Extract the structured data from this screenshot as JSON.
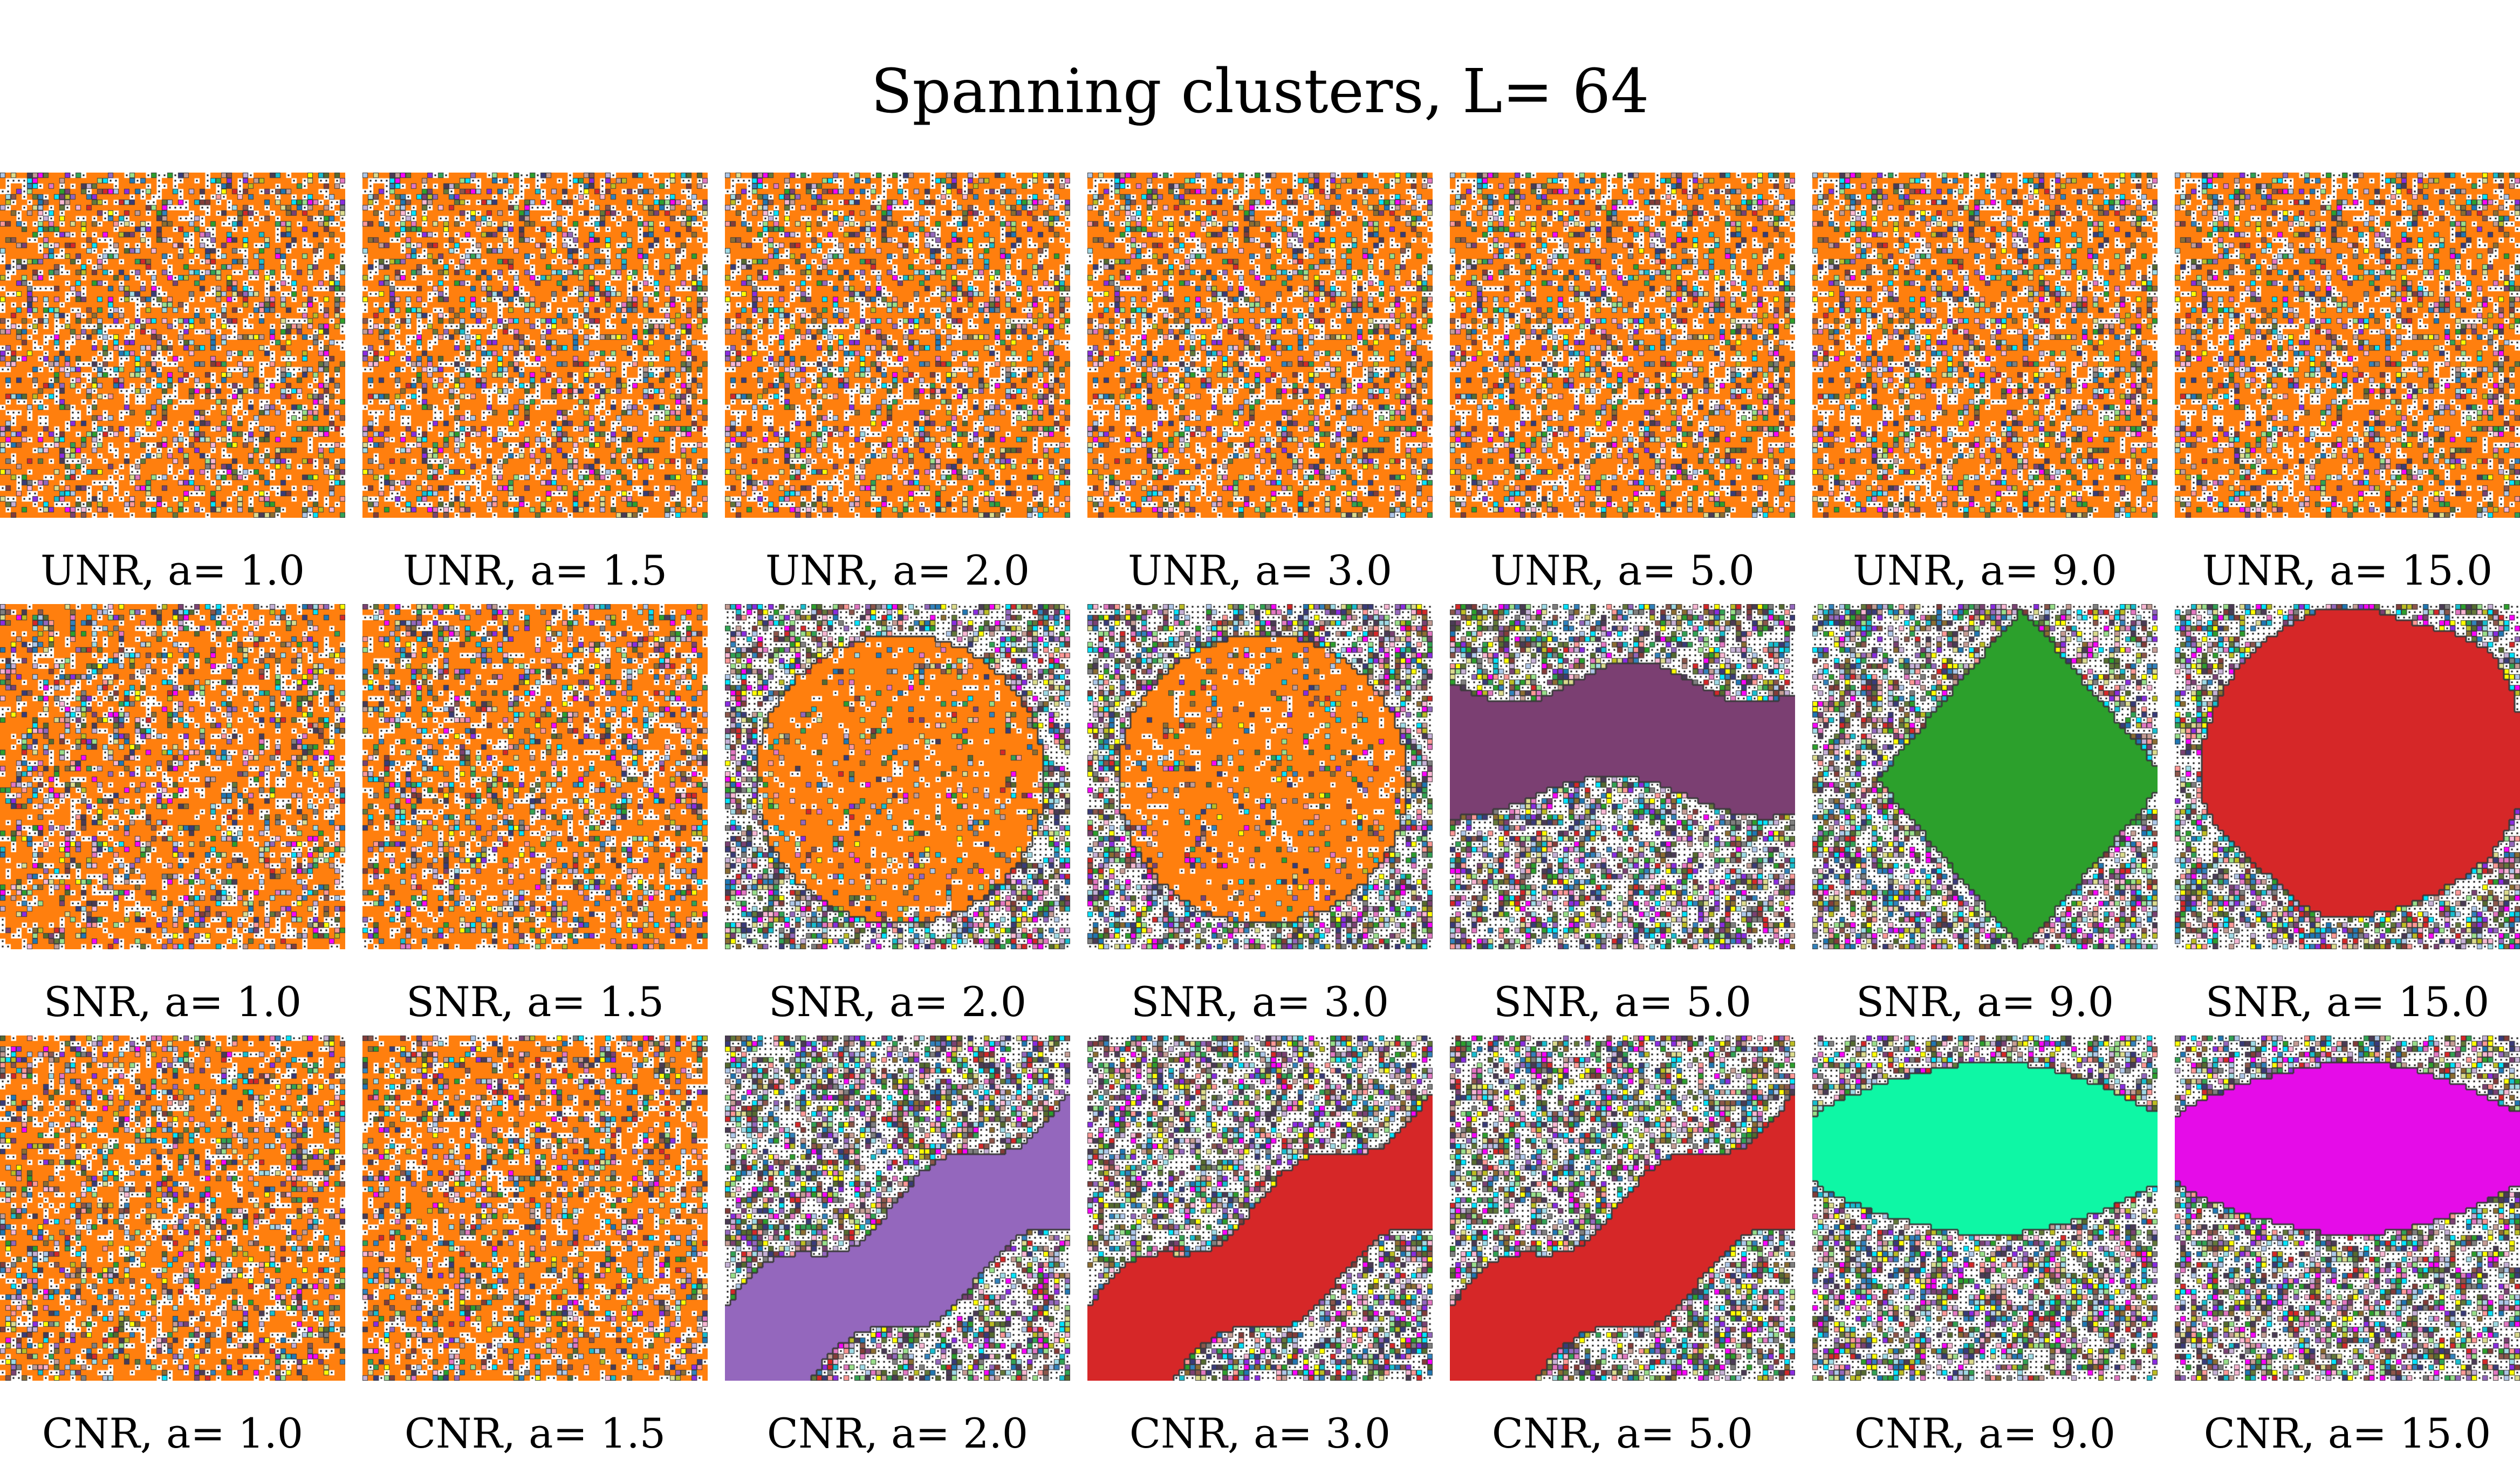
{
  "title": "Spanning clusters, L= 64",
  "lattice_size": 64,
  "panel_rows": [
    {
      "model": "UNR",
      "panels": [
        {
          "caption": "UNR, a= 1.0",
          "a": 1.0,
          "spanning_cluster_color": "#ff7f0e",
          "spanning_shape": "percolating-network"
        },
        {
          "caption": "UNR, a= 1.5",
          "a": 1.5,
          "spanning_cluster_color": "#ff7f0e",
          "spanning_shape": "percolating-network"
        },
        {
          "caption": "UNR, a= 2.0",
          "a": 2.0,
          "spanning_cluster_color": "#ff7f0e",
          "spanning_shape": "percolating-network"
        },
        {
          "caption": "UNR, a= 3.0",
          "a": 3.0,
          "spanning_cluster_color": "#ff7f0e",
          "spanning_shape": "percolating-network"
        },
        {
          "caption": "UNR, a= 5.0",
          "a": 5.0,
          "spanning_cluster_color": "#ff7f0e",
          "spanning_shape": "percolating-network"
        },
        {
          "caption": "UNR, a= 9.0",
          "a": 9.0,
          "spanning_cluster_color": "#ff7f0e",
          "spanning_shape": "percolating-network"
        },
        {
          "caption": "UNR, a= 15.0",
          "a": 15.0,
          "spanning_cluster_color": "#ff7f0e",
          "spanning_shape": "percolating-network"
        }
      ]
    },
    {
      "model": "SNR",
      "panels": [
        {
          "caption": "SNR, a= 1.0",
          "a": 1.0,
          "spanning_cluster_color": "#ff7f0e",
          "spanning_shape": "percolating-network"
        },
        {
          "caption": "SNR, a= 1.5",
          "a": 1.5,
          "spanning_cluster_color": "#ff7f0e",
          "spanning_shape": "percolating-network"
        },
        {
          "caption": "SNR, a= 2.0",
          "a": 2.0,
          "spanning_cluster_color": "#ff7f0e",
          "spanning_shape": "branched-blob"
        },
        {
          "caption": "SNR, a= 3.0",
          "a": 3.0,
          "spanning_cluster_color": "#ff7f0e",
          "spanning_shape": "branched-blob"
        },
        {
          "caption": "SNR, a= 5.0",
          "a": 5.0,
          "spanning_cluster_color": "#7b3f72",
          "spanning_shape": "horizontal-band"
        },
        {
          "caption": "SNR, a= 9.0",
          "a": 9.0,
          "spanning_cluster_color": "#2ca02c",
          "spanning_shape": "diamond-blob"
        },
        {
          "caption": "SNR, a= 15.0",
          "a": 15.0,
          "spanning_cluster_color": "#d62728",
          "spanning_shape": "large-blob"
        }
      ]
    },
    {
      "model": "CNR",
      "panels": [
        {
          "caption": "CNR, a= 1.0",
          "a": 1.0,
          "spanning_cluster_color": "#ff7f0e",
          "spanning_shape": "percolating-network"
        },
        {
          "caption": "CNR, a= 1.5",
          "a": 1.5,
          "spanning_cluster_color": "#ff7f0e",
          "spanning_shape": "percolating-network"
        },
        {
          "caption": "CNR, a= 2.0",
          "a": 2.0,
          "spanning_cluster_color": "#9467bd",
          "spanning_shape": "diagonal-band"
        },
        {
          "caption": "CNR, a= 3.0",
          "a": 3.0,
          "spanning_cluster_color": "#d62728",
          "spanning_shape": "diagonal-band"
        },
        {
          "caption": "CNR, a= 5.0",
          "a": 5.0,
          "spanning_cluster_color": "#d62728",
          "spanning_shape": "diagonal-band"
        },
        {
          "caption": "CNR, a= 9.0",
          "a": 9.0,
          "spanning_cluster_color": "#0ef7a5",
          "spanning_shape": "top-blob"
        },
        {
          "caption": "CNR, a= 15.0",
          "a": 15.0,
          "spanning_cluster_color": "#e50ce8",
          "spanning_shape": "top-blob"
        }
      ]
    }
  ],
  "colors": {
    "empty_site": "#ffffff",
    "empty_dot": "#000000",
    "cluster_border": "#3a3a3a",
    "small_cluster_palette": [
      "#1f77b4",
      "#2ca02c",
      "#d62728",
      "#9467bd",
      "#8c564b",
      "#e377c2",
      "#7f7f7f",
      "#bcbd22",
      "#17becf",
      "#aec7e8",
      "#98df8a",
      "#ff9896",
      "#c5b0d5",
      "#c49c94",
      "#f7b6d2",
      "#dbdb8d",
      "#9edae5",
      "#393b79",
      "#637939",
      "#8c6d31",
      "#843c39",
      "#7b4173",
      "#3182bd",
      "#31a354",
      "#00e5ff",
      "#8a2be2",
      "#ff00ff",
      "#ffff00",
      "#556b2f",
      "#4b3b55"
    ]
  }
}
